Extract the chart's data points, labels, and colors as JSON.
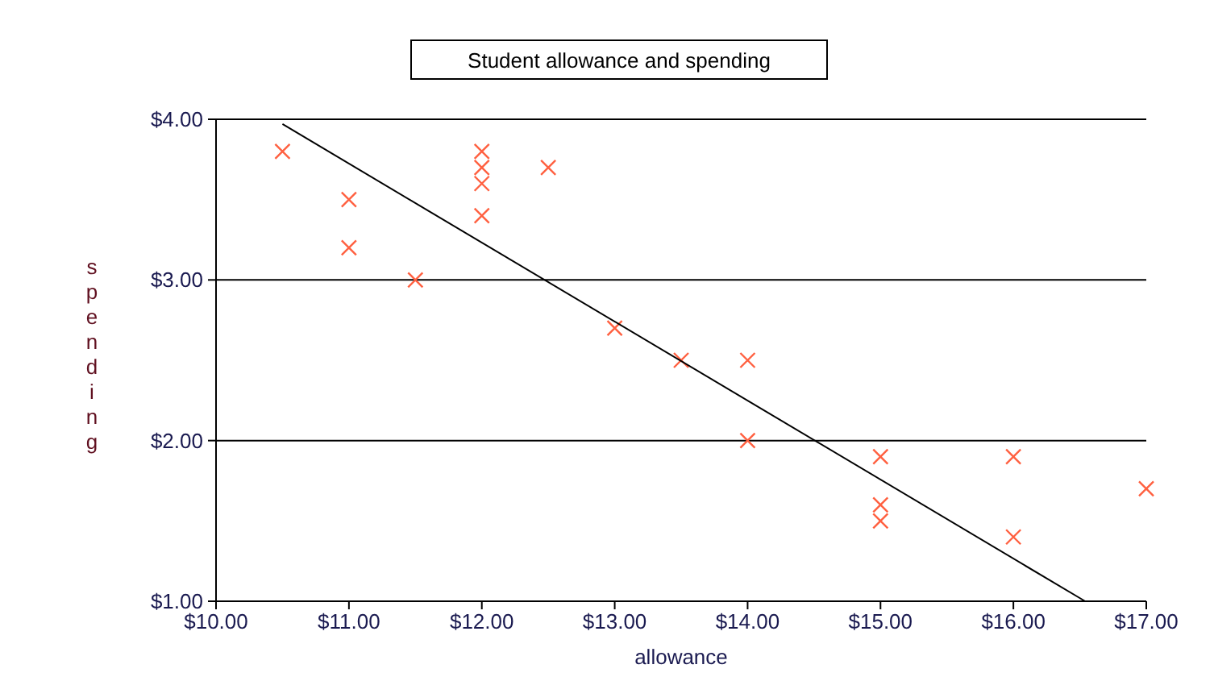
{
  "chart_data": {
    "type": "scatter",
    "title": "Student allowance and spending",
    "xlabel": "allowance",
    "ylabel": "spending",
    "xlim": [
      10,
      17
    ],
    "ylim": [
      1,
      4
    ],
    "xticks": [
      {
        "value": 10,
        "label": "$10.00"
      },
      {
        "value": 11,
        "label": "$11.00"
      },
      {
        "value": 12,
        "label": "$12.00"
      },
      {
        "value": 13,
        "label": "$13.00"
      },
      {
        "value": 14,
        "label": "$14.00"
      },
      {
        "value": 15,
        "label": "$15.00"
      },
      {
        "value": 16,
        "label": "$16.00"
      },
      {
        "value": 17,
        "label": "$17.00"
      }
    ],
    "yticks": [
      {
        "value": 1,
        "label": "$1.00"
      },
      {
        "value": 2,
        "label": "$2.00"
      },
      {
        "value": 3,
        "label": "$3.00"
      },
      {
        "value": 4,
        "label": "$4.00"
      }
    ],
    "grid": "y",
    "marker": "cross",
    "series": [
      {
        "color": "#ff6040",
        "x": [
          10.5,
          11,
          11,
          11.5,
          12,
          12,
          12,
          12,
          12.5,
          13,
          13.5,
          14,
          14,
          15,
          15,
          15,
          16,
          16,
          17
        ],
        "values": [
          3.8,
          3.5,
          3.2,
          3.0,
          3.8,
          3.7,
          3.6,
          3.4,
          3.7,
          2.7,
          2.5,
          2.5,
          2.0,
          1.9,
          1.6,
          1.5,
          1.9,
          1.4,
          1.7
        ]
      },
      {
        "type": "line",
        "color": "#000000",
        "marker": "none",
        "x": [
          10.5,
          16.54
        ],
        "values": [
          3.97,
          1.0
        ]
      }
    ]
  }
}
